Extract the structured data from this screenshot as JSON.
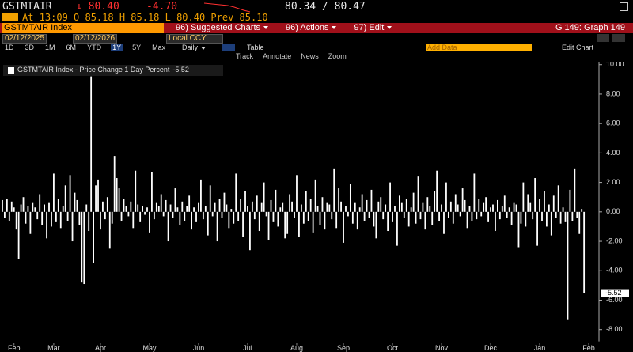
{
  "header": {
    "ticker": "GSTMTAIR",
    "last": "↓ 80.40",
    "change": "-4.70",
    "bid_ask": "80.34 / 80.47",
    "quote_line": "At 13:09 O 85.18 H 85.18 L 80.40 Prev 85.10",
    "security": "GSTMTAIR Index",
    "menu": [
      "96) Suggested Charts",
      "96) Actions",
      "97) Edit"
    ],
    "graph": "G 149: Graph 149"
  },
  "toolbar": {
    "start_date": "02/12/2025",
    "end_date": "02/12/2026",
    "currency": "Local CCY",
    "periods": [
      "1D",
      "3D",
      "1M",
      "6M",
      "YTD",
      "1Y",
      "5Y",
      "Max"
    ],
    "frequency": "Daily",
    "table": "Table",
    "add_data": "Add Data",
    "edit_chart": "Edit Chart",
    "tools": [
      "Track",
      "Annotate",
      "News",
      "Zoom"
    ]
  },
  "chart_data": {
    "type": "bar",
    "series_name": "GSTMTAIR Index - Price Change 1 Day Percent",
    "color": "#ffffff",
    "values": [
      0.8,
      -0.4,
      0.9,
      -0.6,
      0.7,
      0.3,
      -1.2,
      -3.2,
      0.5,
      1.0,
      -0.8,
      0.4,
      -1.5,
      0.6,
      0.3,
      -0.5,
      1.2,
      -0.9,
      0.5,
      -1.8,
      0.6,
      -1.0,
      2.6,
      -0.7,
      0.9,
      -1.1,
      0.4,
      1.8,
      -0.6,
      2.5,
      -2.0,
      1.3,
      0.8,
      -0.9,
      -4.8,
      -4.9,
      0.5,
      -1.3,
      9.2,
      -3.5,
      1.8,
      2.2,
      -1.2,
      0.7,
      -0.5,
      1.0,
      -2.5,
      -0.8,
      3.8,
      2.3,
      1.6,
      -0.6,
      0.9,
      0.4,
      -0.3,
      0.7,
      -1.1,
      2.8,
      0.5,
      -0.7,
      0.4,
      -0.2,
      0.3,
      -1.4,
      2.7,
      -0.5,
      0.6,
      0.4,
      1.2,
      -0.3,
      0.8,
      -2.0,
      0.5,
      -0.4,
      1.6,
      0.3,
      -0.9,
      0.7,
      -0.6,
      0.4,
      1.1,
      -1.2,
      0.3,
      -0.7,
      0.6,
      2.2,
      -0.5,
      0.4,
      -1.6,
      1.8,
      -0.3,
      0.6,
      -2.0,
      0.9,
      -0.4,
      1.3,
      0.5,
      -1.1,
      0.2,
      -0.8,
      2.6,
      -0.6,
      0.9,
      -1.7,
      1.4,
      0.4,
      -2.6,
      0.7,
      -0.5,
      1.1,
      -1.3,
      0.6,
      2.0,
      -0.3,
      -1.9,
      0.8,
      -0.7,
      1.5,
      -1.0,
      0.3,
      0.6,
      -1.8,
      -1.5,
      1.2,
      0.7,
      -0.4,
      2.5,
      -1.7,
      0.5,
      -0.8,
      1.4,
      -0.6,
      0.9,
      -1.4,
      2.2,
      0.4,
      -0.9,
      1.0,
      -1.2,
      0.6,
      0.5,
      -0.5,
      2.9,
      -1.1,
      1.6,
      0.7,
      -2.1,
      0.4,
      -0.3,
      1.9,
      -0.8,
      0.6,
      -1.2,
      0.3,
      1.2,
      -0.6,
      0.8,
      -0.4,
      1.5,
      -1.0,
      -1.8,
      0.7,
      1.0,
      -0.5,
      0.5,
      -1.3,
      2.0,
      -0.7,
      0.4,
      -2.3,
      1.1,
      0.6,
      -0.4,
      0.9,
      -1.0,
      0.3,
      1.3,
      -0.8,
      2.4,
      -0.5,
      0.6,
      -1.2,
      1.0,
      0.4,
      -0.9,
      1.4,
      2.8,
      -0.6,
      0.5,
      -1.5,
      2.0,
      -0.4,
      0.7,
      -0.8,
      1.2,
      0.5,
      -0.3,
      1.6,
      0.8,
      -1.1,
      0.4,
      -0.6,
      2.6,
      -0.5,
      0.9,
      -0.3,
      0.6,
      1.0,
      -0.7,
      0.3,
      0.5,
      -1.3,
      0.8,
      -0.5,
      0.4,
      1.1,
      -0.4,
      0.3,
      -0.9,
      0.6,
      0.5,
      -2.4,
      -0.8,
      2.0,
      -1.0,
      1.2,
      0.6,
      -0.5,
      2.3,
      -2.3,
      0.9,
      -0.6,
      1.4,
      -1.0,
      0.5,
      -1.6,
      1.1,
      -0.4,
      1.8,
      -0.8,
      0.3,
      -0.7,
      -7.3,
      1.5,
      -0.6,
      2.9,
      -0.4,
      -1.5,
      0.2,
      -5.52
    ],
    "xlim": [
      -1,
      252
    ],
    "xticks": [
      {
        "value": 5,
        "label": "Feb"
      },
      {
        "value": 22,
        "label": "Mar"
      },
      {
        "value": 42,
        "label": "Apr"
      },
      {
        "value": 63,
        "label": "May"
      },
      {
        "value": 84,
        "label": "Jun"
      },
      {
        "value": 105,
        "label": "Jul"
      },
      {
        "value": 126,
        "label": "Aug"
      },
      {
        "value": 146,
        "label": "Sep"
      },
      {
        "value": 167,
        "label": "Oct"
      },
      {
        "value": 188,
        "label": "Nov"
      },
      {
        "value": 209,
        "label": "Dec"
      },
      {
        "value": 230,
        "label": "Jan"
      },
      {
        "value": 251,
        "label": "Feb"
      }
    ],
    "ylim": [
      -8.8,
      10.2
    ],
    "yticks": [
      {
        "value": 10,
        "label": "10.00"
      },
      {
        "value": 8,
        "label": "8.00"
      },
      {
        "value": 6,
        "label": "6.00"
      },
      {
        "value": 4,
        "label": "4.00"
      },
      {
        "value": 2,
        "label": "2.00"
      },
      {
        "value": 0,
        "label": "0.00"
      },
      {
        "value": -2,
        "label": "-2.00"
      },
      {
        "value": -4,
        "label": "-4.00"
      },
      {
        "value": -6,
        "label": "-6.00"
      },
      {
        "value": -8,
        "label": "-8.00"
      }
    ],
    "grid": false
  }
}
